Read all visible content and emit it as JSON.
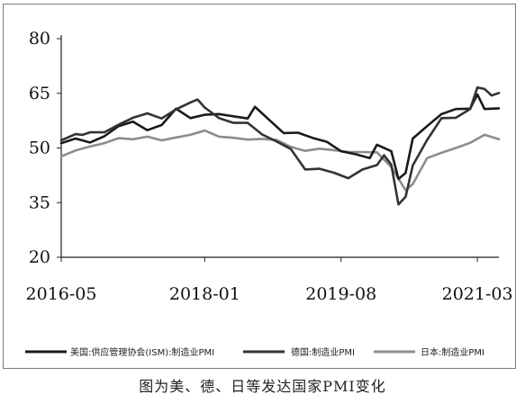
{
  "caption": "图为美、德、日等发达国家PMI变化",
  "chart_data": {
    "type": "line",
    "y_ticks": [
      80,
      65,
      50,
      35,
      20
    ],
    "ylim": [
      20,
      80
    ],
    "x_ticks": [
      {
        "label": "2016-05",
        "date": "2016-05"
      },
      {
        "label": "2018-01",
        "date": "2018-01"
      },
      {
        "label": "2019-08",
        "date": "2019-08"
      },
      {
        "label": "2021-03",
        "date": "2021-03"
      }
    ],
    "xlim": [
      "2016-05",
      "2021-06"
    ],
    "grid": false,
    "legend_position": "bottom",
    "series": [
      {
        "name": "美国:供应管理协会(ISM):制造业PMI",
        "color": "#1a1a1a",
        "values": [
          [
            "2016-05",
            51.3
          ],
          [
            "2016-07",
            52.6
          ],
          [
            "2016-09",
            51.5
          ],
          [
            "2016-11",
            53.2
          ],
          [
            "2017-01",
            56.0
          ],
          [
            "2017-03",
            57.2
          ],
          [
            "2017-05",
            54.9
          ],
          [
            "2017-07",
            56.3
          ],
          [
            "2017-09",
            60.8
          ],
          [
            "2017-11",
            58.2
          ],
          [
            "2018-01",
            59.1
          ],
          [
            "2018-03",
            59.3
          ],
          [
            "2018-05",
            58.7
          ],
          [
            "2018-07",
            58.1
          ],
          [
            "2018-08",
            61.3
          ],
          [
            "2018-10",
            57.7
          ],
          [
            "2018-12",
            54.1
          ],
          [
            "2019-02",
            54.2
          ],
          [
            "2019-04",
            52.8
          ],
          [
            "2019-06",
            51.7
          ],
          [
            "2019-08",
            49.1
          ],
          [
            "2019-10",
            48.3
          ],
          [
            "2019-12",
            47.2
          ],
          [
            "2020-01",
            50.9
          ],
          [
            "2020-03",
            49.1
          ],
          [
            "2020-04",
            41.5
          ],
          [
            "2020-05",
            43.1
          ],
          [
            "2020-06",
            52.6
          ],
          [
            "2020-08",
            56.0
          ],
          [
            "2020-10",
            59.3
          ],
          [
            "2020-12",
            60.7
          ],
          [
            "2021-02",
            60.8
          ],
          [
            "2021-03",
            64.7
          ],
          [
            "2021-04",
            60.7
          ],
          [
            "2021-06",
            60.9
          ]
        ]
      },
      {
        "name": "德国:制造业PMI",
        "color": "#333333",
        "values": [
          [
            "2016-05",
            52.1
          ],
          [
            "2016-07",
            53.8
          ],
          [
            "2016-08",
            53.6
          ],
          [
            "2016-09",
            54.3
          ],
          [
            "2016-11",
            54.3
          ],
          [
            "2017-01",
            56.4
          ],
          [
            "2017-03",
            58.3
          ],
          [
            "2017-05",
            59.5
          ],
          [
            "2017-07",
            58.1
          ],
          [
            "2017-09",
            60.6
          ],
          [
            "2017-11",
            62.5
          ],
          [
            "2017-12",
            63.3
          ],
          [
            "2018-01",
            61.1
          ],
          [
            "2018-03",
            58.2
          ],
          [
            "2018-05",
            56.9
          ],
          [
            "2018-07",
            56.9
          ],
          [
            "2018-09",
            53.7
          ],
          [
            "2018-11",
            51.8
          ],
          [
            "2019-01",
            49.7
          ],
          [
            "2019-03",
            44.1
          ],
          [
            "2019-05",
            44.3
          ],
          [
            "2019-07",
            43.2
          ],
          [
            "2019-09",
            41.7
          ],
          [
            "2019-11",
            44.1
          ],
          [
            "2020-01",
            45.3
          ],
          [
            "2020-02",
            48.0
          ],
          [
            "2020-03",
            45.4
          ],
          [
            "2020-04",
            34.5
          ],
          [
            "2020-05",
            36.6
          ],
          [
            "2020-06",
            45.2
          ],
          [
            "2020-08",
            52.2
          ],
          [
            "2020-10",
            58.2
          ],
          [
            "2020-12",
            58.3
          ],
          [
            "2021-02",
            60.7
          ],
          [
            "2021-03",
            66.6
          ],
          [
            "2021-04",
            66.2
          ],
          [
            "2021-05",
            64.4
          ],
          [
            "2021-06",
            65.1
          ]
        ]
      },
      {
        "name": "日本:制造业PMI",
        "color": "#8c8c8c",
        "values": [
          [
            "2016-05",
            47.7
          ],
          [
            "2016-07",
            49.3
          ],
          [
            "2016-09",
            50.4
          ],
          [
            "2016-11",
            51.3
          ],
          [
            "2017-01",
            52.7
          ],
          [
            "2017-03",
            52.4
          ],
          [
            "2017-05",
            53.1
          ],
          [
            "2017-07",
            52.1
          ],
          [
            "2017-09",
            52.9
          ],
          [
            "2017-11",
            53.6
          ],
          [
            "2018-01",
            54.8
          ],
          [
            "2018-03",
            53.1
          ],
          [
            "2018-05",
            52.8
          ],
          [
            "2018-07",
            52.3
          ],
          [
            "2018-09",
            52.5
          ],
          [
            "2018-11",
            52.2
          ],
          [
            "2019-01",
            50.3
          ],
          [
            "2019-03",
            49.2
          ],
          [
            "2019-05",
            49.8
          ],
          [
            "2019-07",
            49.4
          ],
          [
            "2019-09",
            48.9
          ],
          [
            "2019-11",
            48.9
          ],
          [
            "2020-01",
            48.8
          ],
          [
            "2020-03",
            44.8
          ],
          [
            "2020-05",
            38.4
          ],
          [
            "2020-06",
            40.1
          ],
          [
            "2020-08",
            47.2
          ],
          [
            "2020-10",
            48.7
          ],
          [
            "2020-12",
            50.0
          ],
          [
            "2021-02",
            51.4
          ],
          [
            "2021-04",
            53.6
          ],
          [
            "2021-06",
            52.4
          ]
        ]
      }
    ]
  }
}
